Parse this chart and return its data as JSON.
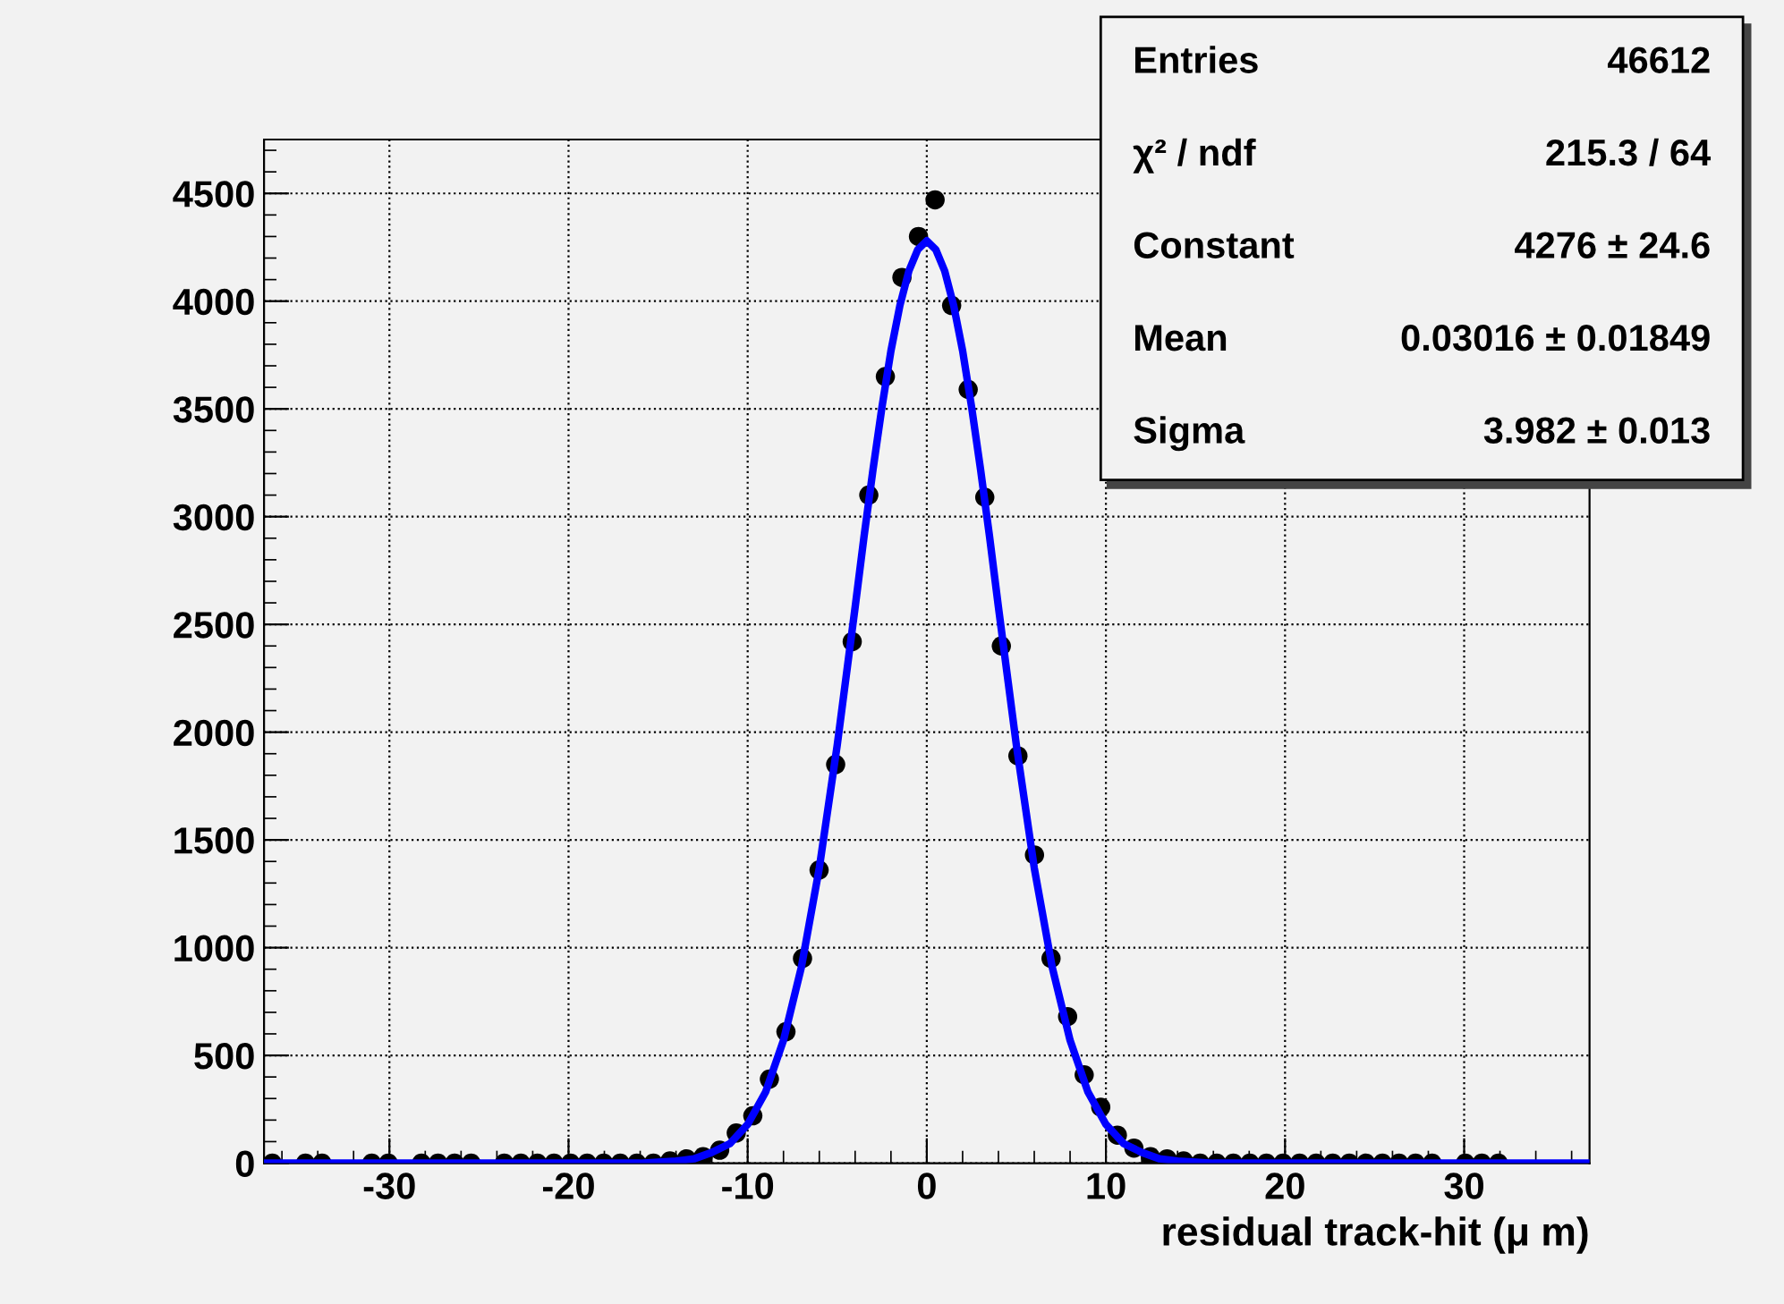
{
  "chart_data": {
    "type": "scatter",
    "xlabel": "residual track-hit (μ m)",
    "xlim": [
      -37,
      37
    ],
    "xticks": [
      -30,
      -20,
      -10,
      0,
      10,
      20,
      30
    ],
    "ylim": [
      0,
      4750
    ],
    "yticks": [
      0,
      500,
      1000,
      1500,
      2000,
      2500,
      3000,
      3500,
      4000,
      4500
    ],
    "grid": true,
    "marker": "circle",
    "series": [
      {
        "color": "#000000",
        "x": [
          -36.5375,
          -34.6875,
          -33.7625,
          -30.9875,
          -30.0625,
          -28.2125,
          -27.2875,
          -26.3625,
          -25.4375,
          -23.5875,
          -22.6625,
          -21.7375,
          -20.8125,
          -19.8875,
          -18.9625,
          -18.0375,
          -17.1125,
          -16.1875,
          -15.2625,
          -14.3375,
          -13.4125,
          -12.4875,
          -11.5625,
          -10.6375,
          -9.7125,
          -8.7875,
          -7.8625,
          -6.9375,
          -6.0125,
          -5.0875,
          -4.1625,
          -3.2375,
          -2.3125,
          -1.3875,
          -0.4625,
          0.4625,
          1.3875,
          2.3125,
          3.2375,
          4.1625,
          5.0875,
          6.0125,
          6.9375,
          7.8625,
          8.7875,
          9.7125,
          10.6375,
          11.5625,
          12.4875,
          13.4125,
          14.3375,
          15.2625,
          16.1875,
          17.1125,
          18.0375,
          18.9625,
          19.8875,
          20.8125,
          21.7375,
          22.6625,
          23.5875,
          24.5125,
          25.4375,
          26.3625,
          27.2875,
          28.2125,
          30.0625,
          30.9875,
          31.9125
        ],
        "values": [
          0,
          0,
          0,
          0,
          0,
          0,
          0,
          0,
          0,
          0,
          0,
          0,
          0,
          0,
          0,
          0,
          0,
          0,
          0,
          10,
          20,
          30,
          60,
          140,
          220,
          390,
          610,
          950,
          1360,
          1850,
          2420,
          3100,
          3650,
          4110,
          4300,
          4470,
          3980,
          3590,
          3090,
          2400,
          1890,
          1430,
          950,
          680,
          410,
          260,
          130,
          70,
          30,
          20,
          10,
          0,
          0,
          0,
          0,
          0,
          0,
          0,
          0,
          0,
          0,
          0,
          0,
          0,
          0,
          0,
          0,
          0,
          0
        ]
      },
      {
        "type": "line",
        "color": "#0000ff",
        "marker": "none",
        "line_style": "solid",
        "x": [
          -37,
          -16,
          -14,
          -13,
          -12,
          -11,
          -10,
          -9,
          -8,
          -7,
          -6,
          -5,
          -4,
          -3.5,
          -3,
          -2.5,
          -2,
          -1.5,
          -1,
          -0.5,
          0,
          0.5,
          1,
          1.5,
          2,
          2.5,
          3,
          3.5,
          4,
          5,
          6,
          7,
          8,
          9,
          10,
          11,
          12,
          13,
          14,
          16,
          37
        ],
        "values": [
          0,
          0,
          10,
          20,
          50,
          90,
          180,
          330,
          570,
          910,
          1370,
          1940,
          2580,
          2910,
          3220,
          3510,
          3770,
          3980,
          4140,
          4240,
          4280,
          4240,
          4140,
          3980,
          3770,
          3510,
          3220,
          2910,
          2580,
          1940,
          1370,
          910,
          570,
          330,
          180,
          90,
          50,
          20,
          10,
          0,
          0
        ]
      }
    ],
    "annotations": [
      "Entries",
      "46612",
      "χ² / ndf",
      "215.3 / 64",
      "Constant",
      "4276 ± 24.6",
      "Mean",
      "0.03016 ± 0.01849",
      "Sigma",
      "3.982 ± 0.013"
    ]
  }
}
